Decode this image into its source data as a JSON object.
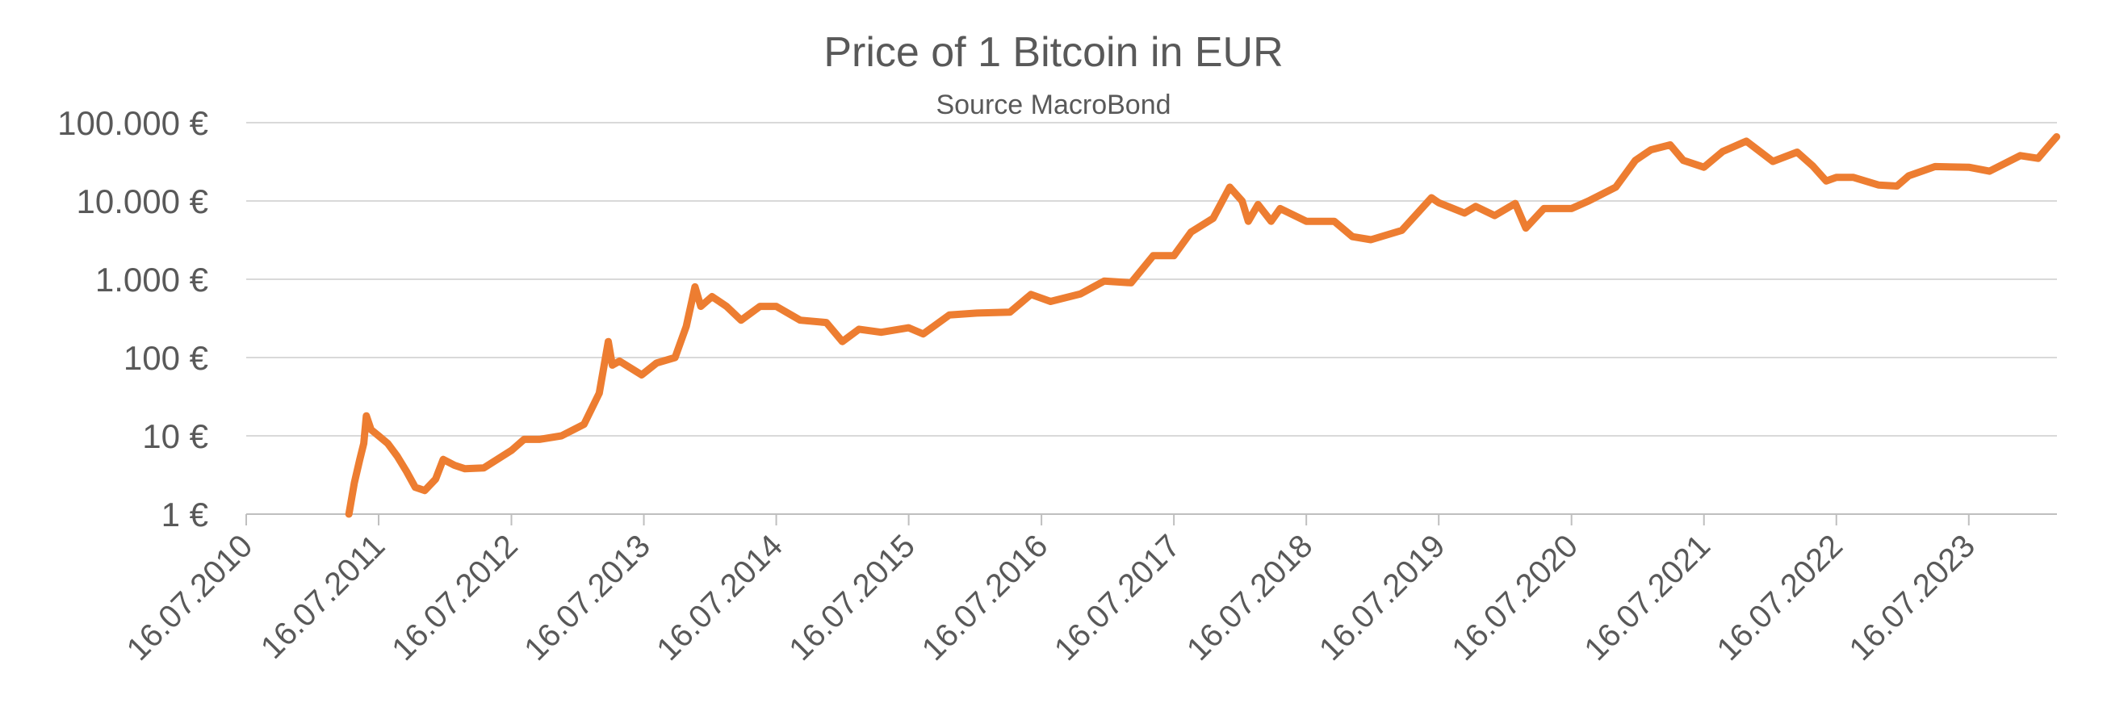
{
  "chart_data": {
    "type": "line",
    "title": "Price of 1 Bitcoin in EUR",
    "subtitle": "Source MacroBond",
    "xlabel": "",
    "ylabel": "",
    "y_scale": "log",
    "ylim": [
      1,
      100000
    ],
    "y_ticks": [
      {
        "value": 1,
        "label": "1 €"
      },
      {
        "value": 10,
        "label": "10 €"
      },
      {
        "value": 100,
        "label": "100 €"
      },
      {
        "value": 1000,
        "label": "1.000 €"
      },
      {
        "value": 10000,
        "label": "10.000 €"
      },
      {
        "value": 100000,
        "label": "100.000 €"
      }
    ],
    "x_ticks": [
      {
        "date": "2010-07-16",
        "label": "16.07.2010"
      },
      {
        "date": "2011-07-16",
        "label": "16.07.2011"
      },
      {
        "date": "2012-07-16",
        "label": "16.07.2012"
      },
      {
        "date": "2013-07-16",
        "label": "16.07.2013"
      },
      {
        "date": "2014-07-16",
        "label": "16.07.2014"
      },
      {
        "date": "2015-07-16",
        "label": "16.07.2015"
      },
      {
        "date": "2016-07-16",
        "label": "16.07.2016"
      },
      {
        "date": "2017-07-16",
        "label": "16.07.2017"
      },
      {
        "date": "2018-07-16",
        "label": "16.07.2018"
      },
      {
        "date": "2019-07-16",
        "label": "16.07.2019"
      },
      {
        "date": "2020-07-16",
        "label": "16.07.2020"
      },
      {
        "date": "2021-07-16",
        "label": "16.07.2021"
      },
      {
        "date": "2022-07-16",
        "label": "16.07.2022"
      },
      {
        "date": "2023-07-16",
        "label": "16.07.2023"
      }
    ],
    "xlim": [
      "2010-07-16",
      "2024-03-15"
    ],
    "grid": true,
    "series": [
      {
        "color": "#ED7D31",
        "points": [
          [
            "2011-04-25",
            1.0
          ],
          [
            "2011-05-10",
            2.5
          ],
          [
            "2011-05-25",
            5.0
          ],
          [
            "2011-06-05",
            8.0
          ],
          [
            "2011-06-12",
            18.0
          ],
          [
            "2011-06-25",
            12.0
          ],
          [
            "2011-07-16",
            10.0
          ],
          [
            "2011-08-10",
            8.0
          ],
          [
            "2011-09-05",
            5.5
          ],
          [
            "2011-10-01",
            3.5
          ],
          [
            "2011-10-25",
            2.2
          ],
          [
            "2011-11-20",
            2.0
          ],
          [
            "2011-12-20",
            2.8
          ],
          [
            "2012-01-10",
            5.0
          ],
          [
            "2012-02-10",
            4.2
          ],
          [
            "2012-03-10",
            3.8
          ],
          [
            "2012-05-01",
            3.9
          ],
          [
            "2012-07-16",
            6.5
          ],
          [
            "2012-08-20",
            9.0
          ],
          [
            "2012-10-01",
            9.0
          ],
          [
            "2012-12-01",
            10.0
          ],
          [
            "2013-02-01",
            14.0
          ],
          [
            "2013-03-15",
            35.0
          ],
          [
            "2013-04-09",
            160.0
          ],
          [
            "2013-04-20",
            80.0
          ],
          [
            "2013-05-10",
            90.0
          ],
          [
            "2013-07-10",
            60.0
          ],
          [
            "2013-08-20",
            85.0
          ],
          [
            "2013-10-10",
            100.0
          ],
          [
            "2013-11-10",
            250.0
          ],
          [
            "2013-12-04",
            800.0
          ],
          [
            "2013-12-20",
            450.0
          ],
          [
            "2014-01-20",
            600.0
          ],
          [
            "2014-03-01",
            450.0
          ],
          [
            "2014-04-10",
            300.0
          ],
          [
            "2014-06-01",
            450.0
          ],
          [
            "2014-07-16",
            450.0
          ],
          [
            "2014-09-20",
            300.0
          ],
          [
            "2014-12-01",
            280.0
          ],
          [
            "2015-01-14",
            160.0
          ],
          [
            "2015-03-01",
            230.0
          ],
          [
            "2015-05-01",
            210.0
          ],
          [
            "2015-07-16",
            240.0
          ],
          [
            "2015-08-25",
            200.0
          ],
          [
            "2015-11-05",
            350.0
          ],
          [
            "2016-01-20",
            370.0
          ],
          [
            "2016-04-20",
            380.0
          ],
          [
            "2016-06-17",
            640.0
          ],
          [
            "2016-08-10",
            520.0
          ],
          [
            "2016-11-01",
            650.0
          ],
          [
            "2017-01-05",
            950.0
          ],
          [
            "2017-03-20",
            900.0
          ],
          [
            "2017-05-20",
            2000.0
          ],
          [
            "2017-07-16",
            2000.0
          ],
          [
            "2017-09-01",
            4000.0
          ],
          [
            "2017-11-01",
            6000.0
          ],
          [
            "2017-12-17",
            15000.0
          ],
          [
            "2018-01-20",
            10000.0
          ],
          [
            "2018-02-06",
            5500.0
          ],
          [
            "2018-03-05",
            9000.0
          ],
          [
            "2018-04-10",
            5500.0
          ],
          [
            "2018-05-05",
            8000.0
          ],
          [
            "2018-07-16",
            5500.0
          ],
          [
            "2018-10-01",
            5500.0
          ],
          [
            "2018-11-20",
            3500.0
          ],
          [
            "2019-01-10",
            3200.0
          ],
          [
            "2019-04-05",
            4200.0
          ],
          [
            "2019-06-26",
            11000.0
          ],
          [
            "2019-07-16",
            9500.0
          ],
          [
            "2019-09-25",
            7000.0
          ],
          [
            "2019-10-26",
            8500.0
          ],
          [
            "2019-12-17",
            6500.0
          ],
          [
            "2020-02-12",
            9300.0
          ],
          [
            "2020-03-12",
            4500.0
          ],
          [
            "2020-05-01",
            8000.0
          ],
          [
            "2020-07-16",
            8000.0
          ],
          [
            "2020-09-01",
            10000.0
          ],
          [
            "2020-11-15",
            15000.0
          ],
          [
            "2021-01-08",
            33000.0
          ],
          [
            "2021-02-20",
            45000.0
          ],
          [
            "2021-04-14",
            52000.0
          ],
          [
            "2021-05-20",
            33000.0
          ],
          [
            "2021-07-16",
            27000.0
          ],
          [
            "2021-09-06",
            43000.0
          ],
          [
            "2021-11-10",
            58000.0
          ],
          [
            "2022-01-22",
            32000.0
          ],
          [
            "2022-03-30",
            42000.0
          ],
          [
            "2022-05-12",
            28000.0
          ],
          [
            "2022-06-18",
            18000.0
          ],
          [
            "2022-07-16",
            20000.0
          ],
          [
            "2022-09-01",
            20000.0
          ],
          [
            "2022-11-09",
            16000.0
          ],
          [
            "2022-12-30",
            15500.0
          ],
          [
            "2023-02-01",
            21000.0
          ],
          [
            "2023-04-14",
            27500.0
          ],
          [
            "2023-07-16",
            27000.0
          ],
          [
            "2023-09-11",
            24000.0
          ],
          [
            "2023-12-05",
            38000.0
          ],
          [
            "2024-01-23",
            35000.0
          ],
          [
            "2024-02-28",
            55000.0
          ],
          [
            "2024-03-14",
            66000.0
          ]
        ]
      }
    ]
  }
}
